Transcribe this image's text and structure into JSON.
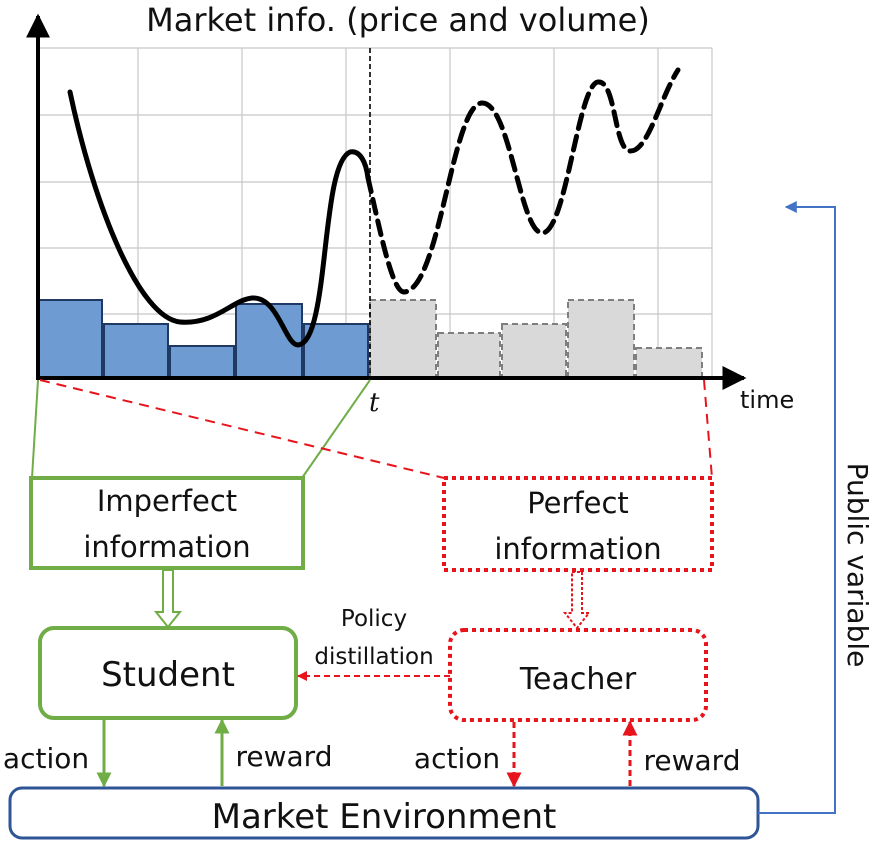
{
  "chart": {
    "title": "Market info. (price and volume)",
    "x_axis_label": "time",
    "t_marker_label": "t"
  },
  "boxes": {
    "imperfect": {
      "line1": "Imperfect",
      "line2": "information"
    },
    "perfect": {
      "line1": "Perfect",
      "line2": "information"
    },
    "student": "Student",
    "teacher": "Teacher",
    "environment": "Market Environment"
  },
  "edges": {
    "distillation_line1": "Policy",
    "distillation_line2": "distillation",
    "student_action": "action",
    "student_reward": "reward",
    "teacher_action": "action",
    "teacher_reward": "reward",
    "public_variable": "Public variable"
  },
  "colors": {
    "student_green": "#70ad47",
    "teacher_red": "#e8141c",
    "volume_past": "#6e9bd1",
    "volume_future": "#d9d9d9",
    "environment_blue": "#2f5597",
    "feedback_blue": "#4472c4"
  }
}
